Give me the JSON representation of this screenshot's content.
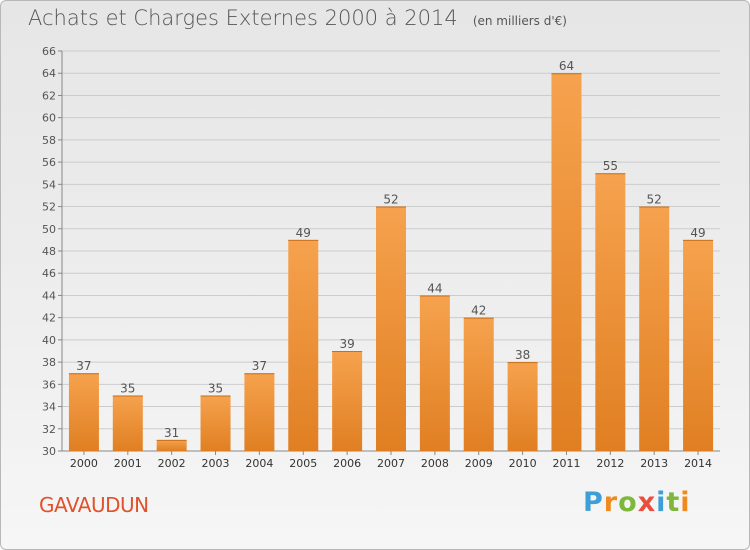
{
  "title": "Achats et Charges Externes 2000 à 2014",
  "unit_note": "(en milliers d'€)",
  "commune": "GAVAUDUN",
  "brand": "Proxiti",
  "colors": {
    "bar_light": "#f6a24e",
    "bar_dark": "#e07f22",
    "grid": "#cccccc",
    "text": "#555555",
    "commune": "#e0522c",
    "brand_letters": [
      "#3d9fd6",
      "#f08a1d",
      "#7db83a",
      "#e94e3d",
      "#3d9fd6",
      "#7db83a",
      "#f08a1d"
    ]
  },
  "chart_data": {
    "type": "bar",
    "categories": [
      "2000",
      "2001",
      "2002",
      "2003",
      "2004",
      "2005",
      "2006",
      "2007",
      "2008",
      "2009",
      "2010",
      "2011",
      "2012",
      "2013",
      "2014"
    ],
    "values": [
      37,
      35,
      31,
      35,
      37,
      49,
      39,
      52,
      44,
      42,
      38,
      64,
      55,
      52,
      49
    ],
    "ylim": [
      30,
      66
    ],
    "yticks": [
      30,
      32,
      34,
      36,
      38,
      40,
      42,
      44,
      46,
      48,
      50,
      52,
      54,
      56,
      58,
      60,
      62,
      64,
      66
    ],
    "grid": true,
    "data_labels": true
  }
}
